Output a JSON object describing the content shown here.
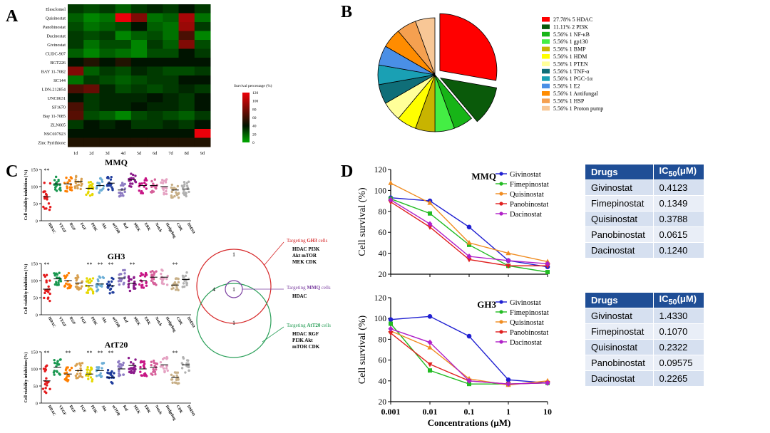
{
  "panel_labels": {
    "a": "A",
    "b": "B",
    "c": "C",
    "d": "D"
  },
  "chart_data": [
    {
      "id": "A",
      "type": "heatmap",
      "rows": [
        "Elesclomol",
        "Quisinostat",
        "Panobinostat",
        "Dacinostat",
        "Givinostat",
        "CUDC-907",
        "BGT226",
        "BAY 11-7082",
        "SC144",
        "LDN-212854",
        "UNC0631",
        "SF1670",
        "Bay 11-7085",
        "ZLN005",
        "NSC697923",
        "Zinc Pyrithione"
      ],
      "columns": [
        "1d",
        "2d",
        "3d",
        "4d",
        "5d",
        "6d",
        "7d",
        "8d",
        "9d"
      ],
      "values": [
        [
          30,
          25,
          30,
          20,
          30,
          35,
          30,
          40,
          30
        ],
        [
          20,
          10,
          15,
          120,
          80,
          15,
          20,
          95,
          15
        ],
        [
          25,
          15,
          20,
          25,
          40,
          20,
          15,
          90,
          30
        ],
        [
          30,
          25,
          30,
          10,
          20,
          25,
          15,
          60,
          10
        ],
        [
          30,
          15,
          25,
          25,
          10,
          30,
          20,
          80,
          25
        ],
        [
          20,
          10,
          20,
          15,
          10,
          25,
          25,
          40,
          30
        ],
        [
          40,
          45,
          40,
          45,
          40,
          40,
          40,
          40,
          40
        ],
        [
          80,
          20,
          30,
          25,
          35,
          30,
          25,
          25,
          30
        ],
        [
          15,
          30,
          25,
          20,
          25,
          30,
          30,
          40,
          40
        ],
        [
          60,
          70,
          35,
          25,
          30,
          25,
          30,
          35,
          30
        ],
        [
          40,
          30,
          35,
          35,
          35,
          40,
          35,
          30,
          40
        ],
        [
          60,
          30,
          35,
          35,
          40,
          35,
          35,
          30,
          40
        ],
        [
          65,
          25,
          20,
          10,
          25,
          30,
          25,
          20,
          30
        ],
        [
          30,
          40,
          35,
          40,
          30,
          30,
          35,
          30,
          40
        ],
        [
          40,
          40,
          40,
          40,
          40,
          40,
          40,
          40,
          120
        ],
        [
          45,
          45,
          45,
          45,
          45,
          45,
          45,
          45,
          45
        ]
      ],
      "colorbar": {
        "label": "Survival percentage (%)",
        "ticks": [
          120,
          100,
          80,
          60,
          40,
          20,
          0
        ],
        "range": [
          0,
          120
        ]
      }
    },
    {
      "id": "B",
      "type": "pie",
      "slices": [
        {
          "label": "27.78%  5 HDAC",
          "value": 27.78,
          "color": "#ff0000",
          "exploded": true
        },
        {
          "label": "11.11%  2 PI3K",
          "value": 11.11,
          "color": "#0a5a0a",
          "exploded": true
        },
        {
          "label": "5.56%  1 NF-κB",
          "value": 5.56,
          "color": "#17b417"
        },
        {
          "label": "5.56%  1 gp130",
          "value": 5.56,
          "color": "#44ee44"
        },
        {
          "label": "5.56%  1 BMP",
          "value": 5.56,
          "color": "#c8b400"
        },
        {
          "label": "5.56%  1 HDM",
          "value": 5.56,
          "color": "#ffff00"
        },
        {
          "label": "5.56%  1 PTEN",
          "value": 5.56,
          "color": "#ffff99"
        },
        {
          "label": "5.56%  1 TNF-α",
          "value": 5.56,
          "color": "#0f6e78"
        },
        {
          "label": "5.56%  1 PGC-1α",
          "value": 5.56,
          "color": "#1aa0b4"
        },
        {
          "label": "5.56%  1 E2",
          "value": 5.56,
          "color": "#4a8fe6"
        },
        {
          "label": "5.56%  1 Antifungal",
          "value": 5.56,
          "color": "#ff8c00"
        },
        {
          "label": "5.56%  1 HSP",
          "value": 5.56,
          "color": "#f5a050"
        },
        {
          "label": "5.56%  1 Proton pump",
          "value": 5.56,
          "color": "#f8c796"
        }
      ]
    },
    {
      "id": "C",
      "type": "scatter",
      "ylabel": "Cell viability inhibition (%)",
      "yticks": [
        0,
        50,
        100,
        150
      ],
      "ylim": [
        0,
        150
      ],
      "significance": "**",
      "subplots": [
        {
          "title": "MMQ",
          "categories": [
            "HDAC",
            "VEGF",
            "RGF",
            "FGF",
            "PI3K",
            "Akt",
            "mTOR",
            "Raf",
            "MEK",
            "ERK",
            "Notch",
            "Hedgehog",
            "CDK",
            "DMSO"
          ],
          "means": [
            70,
            108,
            108,
            115,
            95,
            103,
            110,
            90,
            120,
            103,
            103,
            100,
            90,
            93
          ],
          "stars": [
            true,
            false,
            false,
            false,
            false,
            false,
            false,
            false,
            false,
            false,
            false,
            false,
            false,
            false
          ],
          "colors": [
            "#e41a1c",
            "#1a9850",
            "#ff7f00",
            "#d8a050",
            "#e6d800",
            "#6baed6",
            "#1f3c9c",
            "#8e7cc3",
            "#8b1a8b",
            "#c71585",
            "#d6609a",
            "#e5a3c3",
            "#c8b088",
            "#b0b0b0"
          ]
        },
        {
          "title": "GH3",
          "categories": [
            "HDAC",
            "VEGF",
            "RGF",
            "FGF",
            "PI3K",
            "Akt",
            "mTOR",
            "Raf",
            "MEK",
            "ERK",
            "Notch",
            "Hedgehog",
            "CDK",
            "DMSO"
          ],
          "means": [
            75,
            105,
            100,
            93,
            85,
            90,
            85,
            108,
            92,
            100,
            110,
            110,
            87,
            103
          ],
          "stars": [
            true,
            false,
            false,
            false,
            true,
            true,
            true,
            false,
            true,
            false,
            false,
            false,
            true,
            false
          ],
          "colors": [
            "#e41a1c",
            "#1a9850",
            "#ff7f00",
            "#d8a050",
            "#e6d800",
            "#6baed6",
            "#1f3c9c",
            "#8e7cc3",
            "#8b1a8b",
            "#c71585",
            "#d6609a",
            "#e5a3c3",
            "#c8b088",
            "#b0b0b0"
          ]
        },
        {
          "title": "AtT20",
          "categories": [
            "HDAC",
            "VEGF",
            "RGF",
            "FGF",
            "PI3K",
            "Akt",
            "mTOR",
            "Raf",
            "MEK",
            "ERK",
            "Notch",
            "Hedgehog",
            "CDK",
            "DMSO"
          ],
          "means": [
            65,
            105,
            85,
            95,
            85,
            95,
            75,
            100,
            110,
            100,
            105,
            112,
            75,
            112
          ],
          "stars": [
            true,
            false,
            true,
            false,
            true,
            true,
            true,
            false,
            false,
            false,
            false,
            false,
            true,
            false
          ],
          "colors": [
            "#e41a1c",
            "#1a9850",
            "#ff7f00",
            "#d8a050",
            "#e6d800",
            "#6baed6",
            "#1f3c9c",
            "#8e7cc3",
            "#8b1a8b",
            "#c71585",
            "#d6609a",
            "#e5a3c3",
            "#c8b088",
            "#b0b0b0"
          ]
        }
      ]
    },
    {
      "id": "D",
      "type": "line",
      "xlabel": "Concentrations (μM)",
      "ylabel": "Cell survival (%)",
      "x": [
        0.001,
        0.01,
        0.1,
        1,
        10
      ],
      "x_tick_labels": [
        "0.001",
        "0.01",
        "0.1",
        "1",
        "10"
      ],
      "xscale": "log",
      "ylim": [
        20,
        120
      ],
      "yticks": [
        20,
        40,
        60,
        80,
        100,
        120
      ],
      "subplots": [
        {
          "title": "MMQ",
          "series": [
            {
              "name": "Givinostat",
              "color": "#1f1fd1",
              "marker": "circle",
              "values": [
                93,
                90,
                65,
                33,
                27
              ]
            },
            {
              "name": "Fimepinostat",
              "color": "#22bb22",
              "marker": "square",
              "values": [
                92,
                78,
                48,
                28,
                22
              ]
            },
            {
              "name": "Quisinostat",
              "color": "#f08c20",
              "marker": "triangle-up",
              "values": [
                107,
                88,
                50,
                40,
                32
              ]
            },
            {
              "name": "Panobinostat",
              "color": "#e0201f",
              "marker": "triangle-down",
              "values": [
                89,
                65,
                34,
                28,
                28
              ]
            },
            {
              "name": "Dacinostat",
              "color": "#b020c8",
              "marker": "diamond",
              "values": [
                91,
                68,
                37,
                33,
                30
              ]
            }
          ]
        },
        {
          "title": "GH3",
          "series": [
            {
              "name": "Givinostat",
              "color": "#1f1fd1",
              "marker": "circle",
              "values": [
                99,
                102,
                83,
                41,
                38
              ]
            },
            {
              "name": "Fimepinostat",
              "color": "#22bb22",
              "marker": "square",
              "values": [
                95,
                50,
                37,
                37,
                38
              ]
            },
            {
              "name": "Quisinostat",
              "color": "#f08c20",
              "marker": "triangle-up",
              "values": [
                88,
                72,
                42,
                36,
                40
              ]
            },
            {
              "name": "Panobinostat",
              "color": "#e0201f",
              "marker": "triangle-down",
              "values": [
                86,
                56,
                40,
                37,
                38
              ]
            },
            {
              "name": "Dacinostat",
              "color": "#b020c8",
              "marker": "diamond",
              "values": [
                90,
                77,
                40,
                37,
                38
              ]
            }
          ]
        }
      ]
    }
  ],
  "venn": {
    "counts": {
      "gh3_only": "1",
      "left": "4",
      "center": "1",
      "att20_only": "1"
    },
    "gh3": {
      "prefix": "Targeting ",
      "line": "GH3",
      "suffix": " cells",
      "targets": [
        "HDAC   PI3K",
        "Akt    mTOR",
        "MEK    CDK"
      ],
      "color": "#d62728"
    },
    "mmq": {
      "prefix": "Targeting ",
      "line": "MMQ",
      "suffix": " cells",
      "targets": [
        "HDAC"
      ],
      "color": "#7b3fa0"
    },
    "att20": {
      "prefix": "Targeting ",
      "line": "AtT20",
      "suffix": " cells",
      "targets": [
        "HDAC   RGF",
        "PI3K    Akt",
        "mTOR   CDK"
      ],
      "color": "#2ca05a"
    }
  },
  "ic50_tables": [
    {
      "header": [
        "Drugs",
        "IC50(μM)"
      ],
      "rows": [
        [
          "Givinostat",
          "0.4123"
        ],
        [
          "Fimepinostat",
          "0.1349"
        ],
        [
          "Quisinostat",
          "0.3788"
        ],
        [
          "Panobinostat",
          "0.0615"
        ],
        [
          "Dacinostat",
          "0.1240"
        ]
      ]
    },
    {
      "header": [
        "Drugs",
        "IC50(μM)"
      ],
      "rows": [
        [
          "Givinostat",
          "1.4330"
        ],
        [
          "Fimepinostat",
          "0.1070"
        ],
        [
          "Quisinostat",
          "0.2322"
        ],
        [
          "Panobinostat",
          "0.09575"
        ],
        [
          "Dacinostat",
          "0.2265"
        ]
      ]
    }
  ]
}
